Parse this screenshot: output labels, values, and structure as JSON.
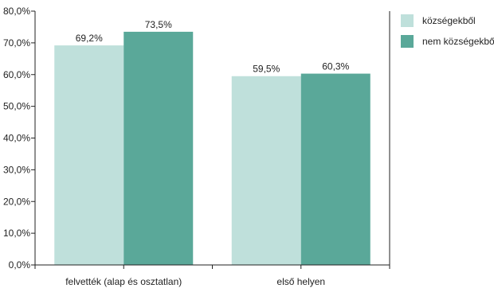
{
  "chart_data": {
    "type": "bar",
    "categories": [
      "felvették (alap és osztatlan)",
      "első helyen"
    ],
    "series": [
      {
        "name": "községekből",
        "values": [
          69.2,
          59.5
        ],
        "labels": [
          "69,2%",
          "59,5%"
        ],
        "color": "#bfe0db"
      },
      {
        "name": "nem községekből",
        "values": [
          73.5,
          60.3
        ],
        "labels": [
          "73,5%",
          "60,3%"
        ],
        "color": "#5aa899"
      }
    ],
    "ylim": [
      0,
      80
    ],
    "yticks": [
      0,
      10,
      20,
      30,
      40,
      50,
      60,
      70,
      80
    ],
    "ytick_labels": [
      "0,0%",
      "10,0%",
      "20,0%",
      "30,0%",
      "40,0%",
      "50,0%",
      "60,0%",
      "70,0%",
      "80,0%"
    ],
    "grid": false,
    "legend_position": "top-right"
  }
}
